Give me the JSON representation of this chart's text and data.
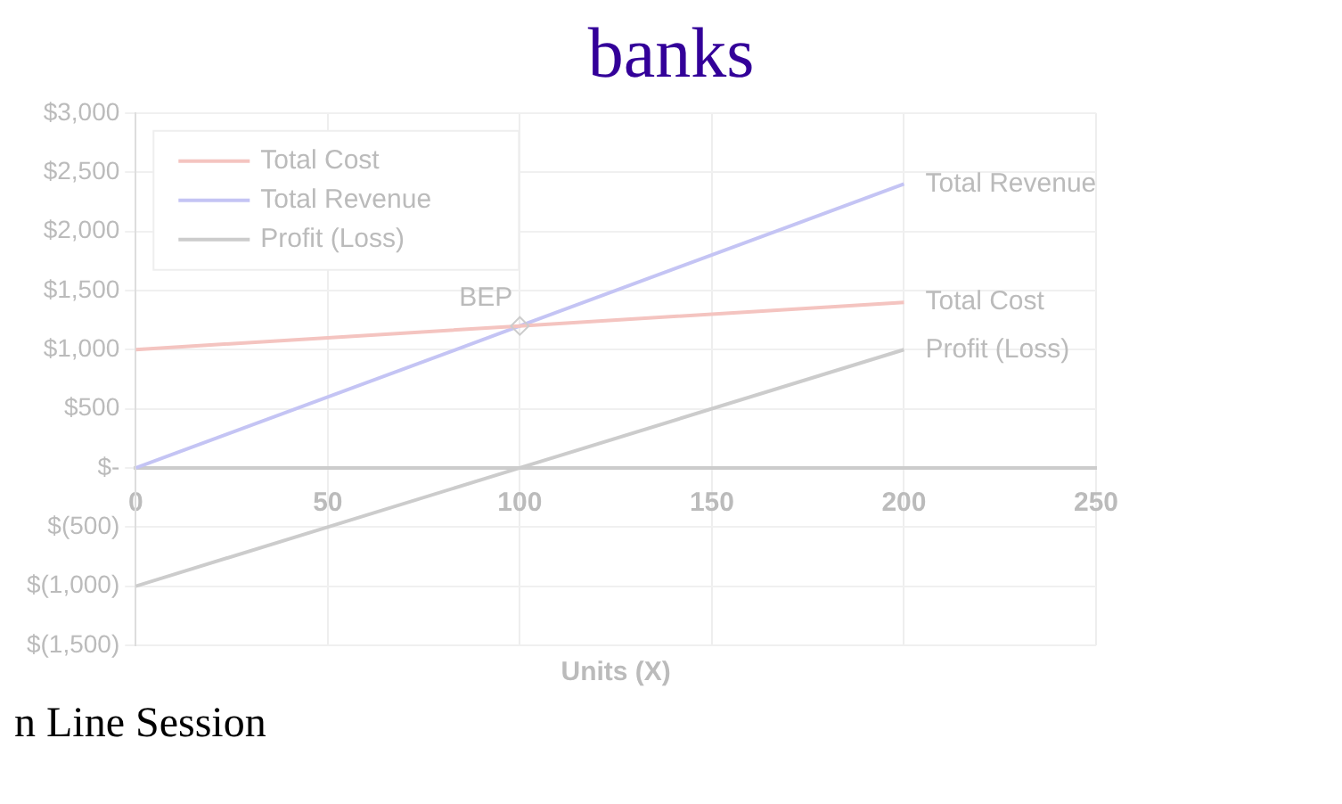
{
  "chart_data": {
    "type": "line",
    "xlabel": "Units (X)",
    "x": [
      0,
      100,
      200
    ],
    "series": [
      {
        "name": "Total Cost",
        "color": "#f4c4c0",
        "values": [
          1000,
          1200,
          1400
        ]
      },
      {
        "name": "Total Revenue",
        "color": "#c4c4f4",
        "values": [
          0,
          1200,
          2400
        ]
      },
      {
        "name": "Profit (Loss)",
        "color": "#cccccc",
        "values": [
          -1000,
          0,
          1000
        ]
      }
    ],
    "xlim": [
      0,
      250
    ],
    "xticks": [
      0,
      50,
      100,
      150,
      200,
      250
    ],
    "ylim": [
      -1500,
      3000
    ],
    "yticks": [
      {
        "value": -1500,
        "label": "$(1,500)"
      },
      {
        "value": -1000,
        "label": "$(1,000)"
      },
      {
        "value": -500,
        "label": "$(500)"
      },
      {
        "value": 0,
        "label": "$-"
      },
      {
        "value": 500,
        "label": "$500"
      },
      {
        "value": 1000,
        "label": "$1,000"
      },
      {
        "value": 1500,
        "label": "$1,500"
      },
      {
        "value": 2000,
        "label": "$2,000"
      },
      {
        "value": 2500,
        "label": "$2,500"
      },
      {
        "value": 3000,
        "label": "$3,000"
      }
    ],
    "annotations": [
      {
        "text": "BEP",
        "x": 100,
        "y": 1200
      },
      "banks",
      "n Line Session"
    ],
    "grid": true,
    "legend": "top left",
    "marker": "none",
    "line_style": "solid"
  }
}
